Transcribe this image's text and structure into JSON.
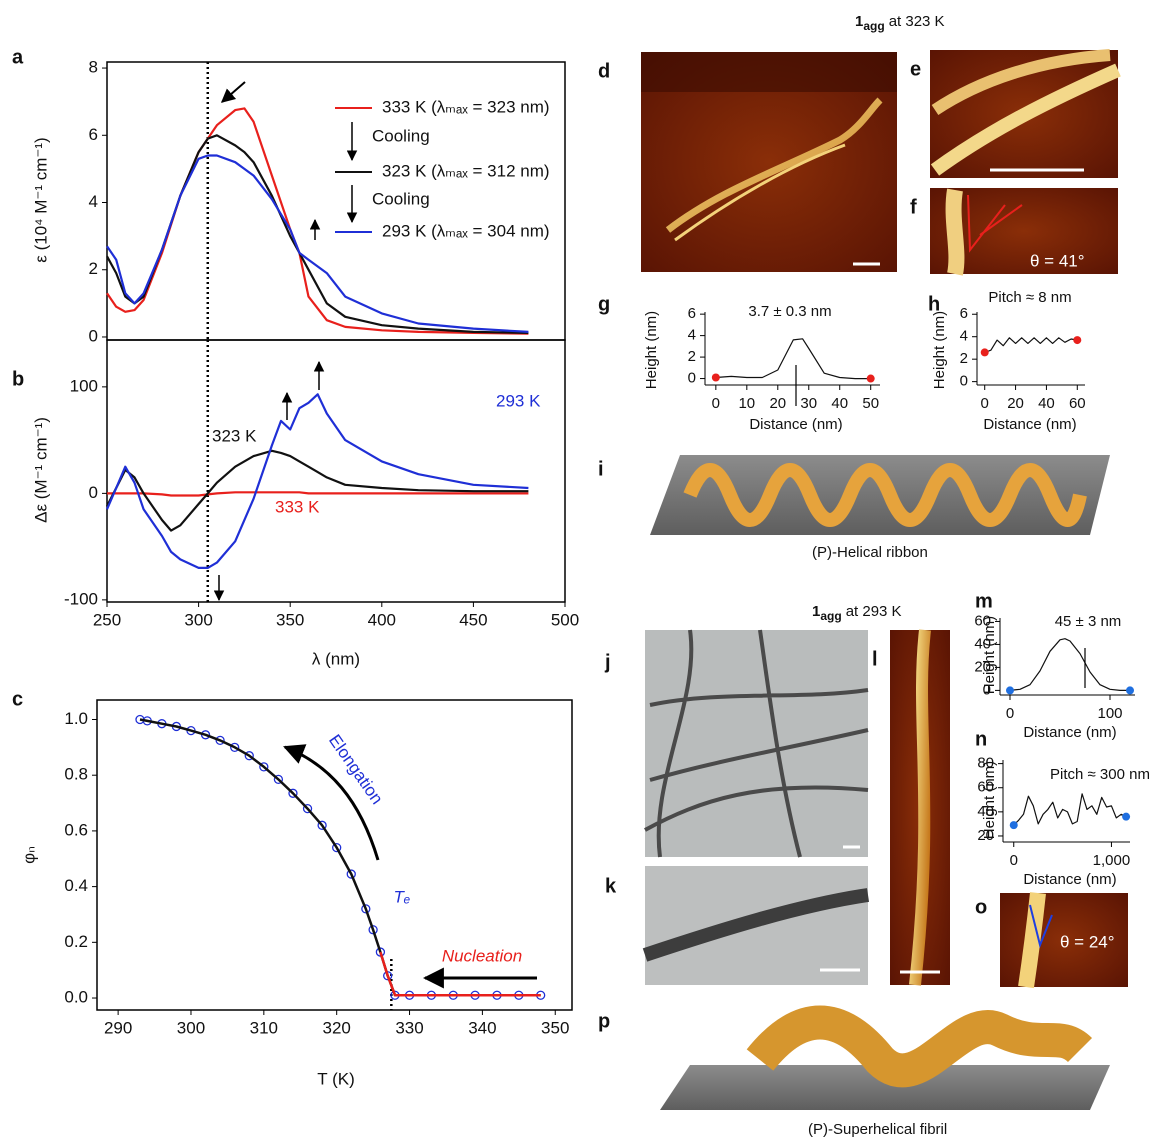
{
  "chart_data": [
    {
      "type": "line",
      "label": "a",
      "ylabel": "ε (10⁴ M⁻¹ cm⁻¹)",
      "xlim": [
        250,
        500
      ],
      "ylim": [
        -0.09,
        8.18
      ],
      "yticks": [
        0,
        2,
        4,
        6,
        8
      ],
      "vline": 305,
      "x": [
        250,
        255,
        260,
        265,
        270,
        280,
        290,
        300,
        305,
        310,
        320,
        325,
        330,
        340,
        350,
        355,
        360,
        370,
        380,
        400,
        420,
        450,
        480
      ],
      "series": [
        {
          "name": "333 K (λₘₐₓ = 323 nm)",
          "color": "#e8201c",
          "values": [
            1.3,
            0.9,
            0.75,
            0.8,
            1.1,
            2.5,
            4.2,
            5.5,
            5.9,
            6.3,
            6.75,
            6.8,
            6.4,
            4.8,
            3.2,
            2.5,
            1.2,
            0.5,
            0.3,
            0.2,
            0.15,
            0.12,
            0.1
          ]
        },
        {
          "name": "323 K (λₘₐₓ = 312 nm)",
          "color": "#111111",
          "values": [
            2.4,
            1.9,
            1.2,
            1.0,
            1.2,
            2.6,
            4.2,
            5.5,
            5.9,
            6.0,
            5.7,
            5.5,
            5.2,
            4.2,
            3.0,
            2.5,
            2.0,
            1.0,
            0.6,
            0.35,
            0.25,
            0.15,
            0.12
          ]
        },
        {
          "name": "293 K (λₘₐₓ = 304 nm)",
          "color": "#1f2fd6",
          "values": [
            2.7,
            2.3,
            1.3,
            1.0,
            1.3,
            2.6,
            4.2,
            5.3,
            5.4,
            5.4,
            5.2,
            5.0,
            4.8,
            4.1,
            3.2,
            2.5,
            2.3,
            1.9,
            1.2,
            0.7,
            0.4,
            0.25,
            0.15
          ]
        }
      ],
      "annotations": [
        "Cooling",
        "Cooling"
      ]
    },
    {
      "type": "line",
      "label": "b",
      "ylabel": "Δε (M⁻¹ cm⁻¹)",
      "xlabel": "λ (nm)",
      "xlim": [
        250,
        500
      ],
      "ylim": [
        -102,
        144
      ],
      "xticks": [
        250,
        300,
        350,
        400,
        450,
        500
      ],
      "yticks": [
        -100,
        0,
        100
      ],
      "vline": 305,
      "x": [
        250,
        255,
        260,
        265,
        270,
        280,
        285,
        290,
        300,
        305,
        310,
        320,
        330,
        340,
        345,
        350,
        355,
        360,
        365,
        370,
        380,
        400,
        420,
        450,
        480
      ],
      "series": [
        {
          "name": "333 K",
          "color": "#e8201c",
          "values": [
            0,
            0,
            0,
            0,
            0,
            -1,
            -2,
            -2,
            -2,
            -1,
            0,
            1,
            1,
            1,
            1,
            1,
            1,
            0,
            0,
            0,
            0,
            0,
            0,
            0,
            0
          ]
        },
        {
          "name": "323 K",
          "color": "#111111",
          "values": [
            -12,
            5,
            22,
            15,
            0,
            -25,
            -35,
            -30,
            -10,
            0,
            10,
            25,
            35,
            40,
            38,
            35,
            30,
            25,
            20,
            15,
            8,
            5,
            3,
            2,
            2
          ]
        },
        {
          "name": "293 K",
          "color": "#1f2fd6",
          "values": [
            -15,
            5,
            25,
            10,
            -15,
            -40,
            -55,
            -62,
            -70,
            -70,
            -65,
            -45,
            -5,
            45,
            68,
            60,
            80,
            85,
            93,
            75,
            50,
            30,
            18,
            8,
            5
          ]
        }
      ]
    },
    {
      "type": "scatter",
      "label": "c",
      "ylabel": "φₙ",
      "xlabel": "T (K)",
      "xlim": [
        287.1,
        352.3
      ],
      "ylim": [
        -0.043,
        1.07
      ],
      "xticks": [
        290,
        300,
        310,
        320,
        330,
        340,
        350
      ],
      "yticks": [
        {
          "value": 0,
          "label": "0.0"
        },
        0.2,
        0.4,
        0.6,
        0.8,
        {
          "value": 1,
          "label": "1.0"
        }
      ],
      "vline": 327.5,
      "x": [
        293,
        294,
        296,
        298,
        300,
        302,
        304,
        306,
        308,
        310,
        312,
        314,
        316,
        318,
        320,
        322,
        324,
        325,
        326,
        327,
        328,
        330,
        333,
        336,
        339,
        342,
        345,
        348
      ],
      "series": [
        {
          "style": "markers",
          "color": "#1f2fd6",
          "values": [
            1.0,
            0.995,
            0.985,
            0.975,
            0.96,
            0.945,
            0.925,
            0.9,
            0.87,
            0.83,
            0.785,
            0.735,
            0.68,
            0.62,
            0.54,
            0.445,
            0.32,
            0.245,
            0.165,
            0.08,
            0.01,
            0.01,
            0.01,
            0.01,
            0.01,
            0.01,
            0.01,
            0.01
          ]
        },
        {
          "style": "line",
          "color": "#111111",
          "values": [
            1.0,
            0.995,
            0.985,
            0.975,
            0.96,
            0.945,
            0.925,
            0.9,
            0.87,
            0.83,
            0.785,
            0.735,
            0.68,
            0.62,
            0.54,
            0.445,
            0.32,
            0.245,
            0.165,
            0.08,
            0.01,
            0.01,
            0.01,
            0.01,
            0.01,
            0.01,
            0.01,
            0.01
          ]
        },
        {
          "style": "line",
          "color": "#e8201c",
          "values": [
            null,
            null,
            null,
            null,
            null,
            null,
            null,
            null,
            null,
            null,
            null,
            null,
            null,
            null,
            null,
            null,
            null,
            null,
            0.165,
            0.08,
            0.01,
            0.01,
            0.01,
            0.01,
            0.01,
            0.01,
            0.01,
            0.01
          ]
        }
      ],
      "annotations": [
        "Elongation",
        "Nucleation",
        "Tₑ"
      ]
    },
    {
      "type": "line",
      "label": "g",
      "ylabel": "Height (nm)",
      "xlabel": "Distance (nm)",
      "xlim": [
        -3.5,
        53
      ],
      "ylim": [
        -0.6,
        6.2
      ],
      "xticks": [
        0,
        10,
        20,
        30,
        40,
        50
      ],
      "yticks": [
        0,
        2,
        4,
        6
      ],
      "marker_color": "#e8201c",
      "x": [
        0,
        5,
        10,
        15,
        20,
        25,
        28,
        30,
        35,
        40,
        45,
        50
      ],
      "series": [
        {
          "color": "#111111",
          "values": [
            0.1,
            0.2,
            0.1,
            0.1,
            0.8,
            3.6,
            3.7,
            2.8,
            0.5,
            0.1,
            0,
            0
          ]
        }
      ],
      "annotations": [
        "3.7 ± 0.3 nm"
      ]
    },
    {
      "type": "line",
      "label": "h",
      "ylabel": "Height (nm)",
      "xlabel": "Distance (nm)",
      "xlim": [
        -5,
        65
      ],
      "ylim": [
        -0.3,
        6.2
      ],
      "xticks": [
        0,
        20,
        40,
        60
      ],
      "yticks": [
        0,
        2,
        4,
        6
      ],
      "marker_color": "#e8201c",
      "x": [
        0,
        4,
        8,
        12,
        16,
        20,
        24,
        28,
        32,
        36,
        40,
        44,
        48,
        52,
        56,
        60
      ],
      "series": [
        {
          "color": "#111111",
          "values": [
            2.6,
            2.8,
            3.7,
            3.2,
            3.9,
            3.4,
            3.9,
            3.4,
            3.9,
            3.4,
            3.9,
            3.4,
            3.9,
            3.5,
            3.8,
            3.7
          ]
        }
      ],
      "annotations": [
        "Pitch ≈ 8 nm"
      ]
    },
    {
      "type": "line",
      "label": "m",
      "ylabel": "Height (nm)",
      "xlabel": "Distance (nm)",
      "xlim": [
        -10,
        125
      ],
      "ylim": [
        -4,
        63
      ],
      "xticks": [
        0,
        100
      ],
      "yticks": [
        0,
        20,
        40,
        60
      ],
      "marker_color": "#1f6fe0",
      "x": [
        0,
        10,
        20,
        30,
        40,
        50,
        55,
        60,
        70,
        80,
        90,
        100,
        110,
        120
      ],
      "series": [
        {
          "color": "#111111",
          "values": [
            0,
            1,
            5,
            17,
            34,
            44,
            45,
            43,
            32,
            16,
            5,
            1,
            0,
            0
          ]
        }
      ],
      "annotations": [
        "45 ± 3 nm"
      ]
    },
    {
      "type": "line",
      "label": "n",
      "ylabel": "Height (nm)",
      "xlabel": "Distance (nm)",
      "xlim": [
        -110,
        1190
      ],
      "ylim": [
        15,
        83
      ],
      "xticks": [
        0,
        {
          "value": 1000,
          "label": "1,000"
        }
      ],
      "yticks": [
        20,
        40,
        60,
        80
      ],
      "marker_color": "#1f6fe0",
      "x": [
        0,
        50,
        100,
        150,
        200,
        250,
        300,
        350,
        400,
        450,
        500,
        550,
        600,
        650,
        700,
        750,
        800,
        850,
        900,
        950,
        1000,
        1050,
        1100,
        1150
      ],
      "series": [
        {
          "color": "#111111",
          "values": [
            29,
            33,
            38,
            53,
            45,
            30,
            38,
            42,
            48,
            35,
            42,
            40,
            30,
            32,
            55,
            42,
            45,
            38,
            52,
            44,
            45,
            35,
            38,
            36
          ]
        }
      ],
      "annotations": [
        "Pitch ≈ 300 nm"
      ]
    }
  ],
  "figure": {
    "title_323": {
      "number": "1",
      "subscript": "agg",
      "text": "at 323 K"
    },
    "title_293": {
      "number": "1",
      "subscript": "agg",
      "text": "at 293 K"
    },
    "panel_labels": {
      "d": "d",
      "e": "e",
      "f": "f",
      "i": "i",
      "j": "j",
      "k": "k",
      "l": "l",
      "o": "o",
      "p": "p"
    },
    "angle_f": "θ = 41°",
    "angle_o": "θ = 24°",
    "caption_i": "(P)-Helical ribbon",
    "caption_p": "(P)-Superhelical fibril"
  }
}
